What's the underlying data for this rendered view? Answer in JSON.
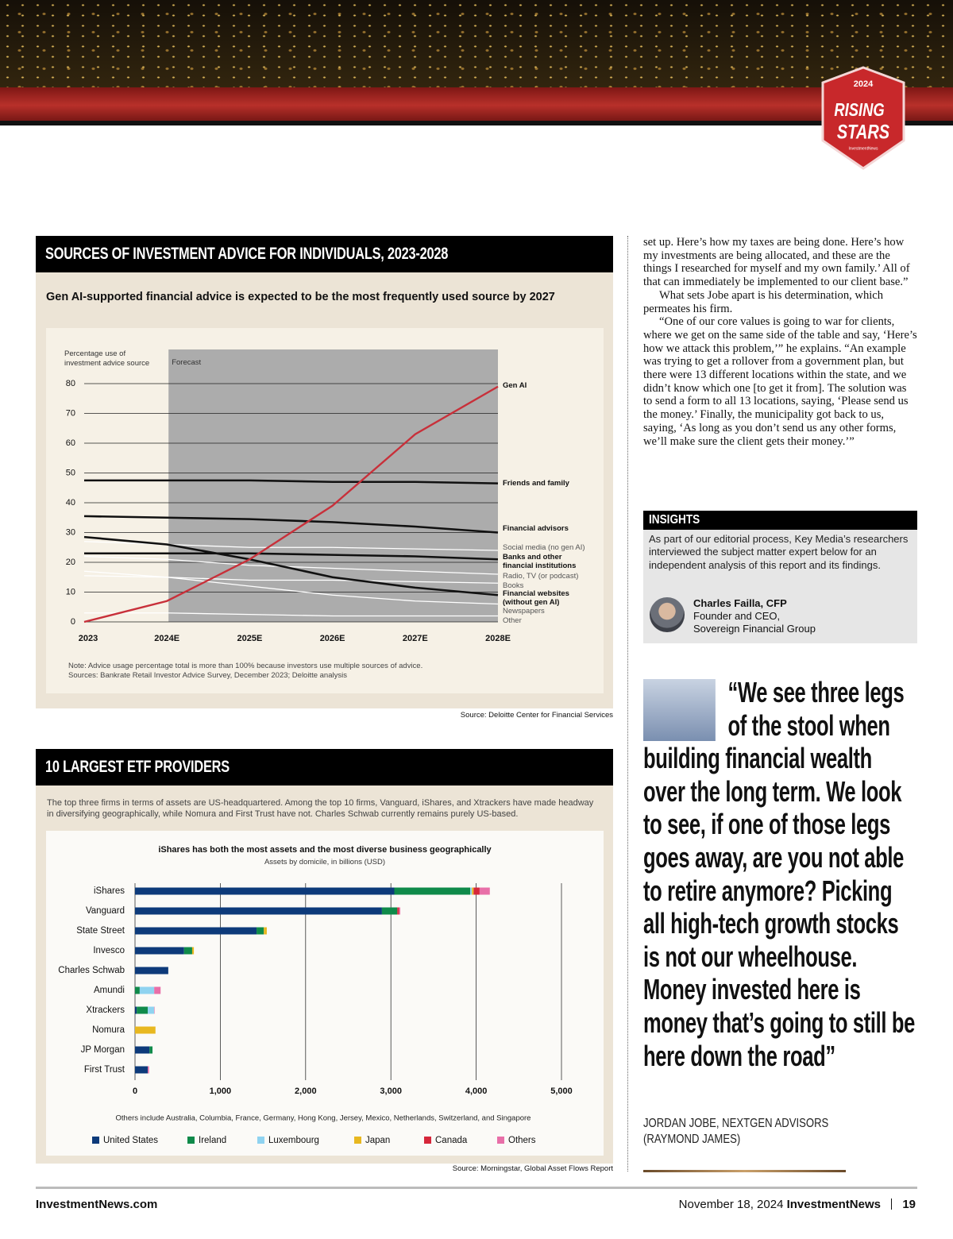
{
  "badge": {
    "year": "2024",
    "line1": "RISING",
    "line2": "STARS",
    "brand": "InvestmentNews"
  },
  "chart_data": [
    {
      "type": "line",
      "title": "SOURCES OF INVESTMENT ADVICE FOR INDIVIDUALS, 2023-2028",
      "subtitle": "Gen AI-supported financial advice is expected to be the most frequently used source by 2027",
      "y_label": "Percentage use of investment advice source",
      "forecast_label": "Forecast",
      "categories": [
        "2023",
        "2024E",
        "2025E",
        "2026E",
        "2027E",
        "2028E"
      ],
      "ylim": [
        0,
        80
      ],
      "yticks": [
        0,
        10,
        20,
        30,
        40,
        50,
        60,
        70,
        80
      ],
      "grid": true,
      "series": [
        {
          "name": "Gen AI",
          "color": "#c8303a",
          "values": [
            0,
            7,
            21,
            39,
            63,
            79
          ]
        },
        {
          "name": "Friends and family",
          "color": "#111111",
          "values": [
            47.5,
            47.5,
            47.5,
            47,
            47,
            46.5
          ]
        },
        {
          "name": "Financial advisors",
          "color": "#111111",
          "values": [
            35.5,
            35,
            34.5,
            33.5,
            32,
            30
          ]
        },
        {
          "name": "Social media (no gen AI)",
          "color": "#ffffff",
          "values": [
            27,
            26,
            25,
            25,
            24.5,
            24
          ]
        },
        {
          "name": "Banks and other financial institutions",
          "color": "#111111",
          "values": [
            23,
            23,
            23,
            22.5,
            22,
            21
          ]
        },
        {
          "name": "Radio, TV (or podcast)",
          "color": "#ffffff",
          "values": [
            22,
            21,
            19,
            18,
            17,
            16
          ]
        },
        {
          "name": "Books",
          "color": "#ffffff",
          "values": [
            15.5,
            15,
            14,
            14,
            13.5,
            13
          ]
        },
        {
          "name": "Financial websites (without gen AI)",
          "color": "#111111",
          "values": [
            28.5,
            26,
            21,
            15,
            11.5,
            9
          ]
        },
        {
          "name": "Newspapers",
          "color": "#ffffff",
          "values": [
            17,
            15,
            12,
            9,
            7,
            6
          ]
        },
        {
          "name": "Other",
          "color": "#ffffff",
          "values": [
            3,
            3,
            2.5,
            2,
            2,
            2
          ]
        }
      ],
      "note": "Note: Advice usage percentage total is more than 100% because investors use multiple sources of advice.",
      "sources": "Sources: Bankrate Retail Investor Advice Survey, December 2023; Deloitte analysis",
      "source": "Source: Deloitte Center for Financial Services"
    },
    {
      "type": "bar",
      "orientation": "horizontal",
      "stacked": true,
      "title": "10 LARGEST ETF PROVIDERS",
      "intro": "The top three firms in terms of assets are US-headquartered. Among the top 10 firms, Vanguard, iShares, and Xtrackers have made headway in diversifying geographically, while Nomura and First Trust have not. Charles Schwab currently remains purely US-based.",
      "chart_title": "iShares has both the most assets and the most diverse business geographically",
      "chart_subtitle": "Assets by domicile, in billions (USD)",
      "categories": [
        "iShares",
        "Vanguard",
        "State Street",
        "Invesco",
        "Charles Schwab",
        "Amundi",
        "Xtrackers",
        "Nomura",
        "JP Morgan",
        "First Trust"
      ],
      "xlim": [
        0,
        5000
      ],
      "xticks": [
        0,
        {
          "value": 1000,
          "label": "1,000"
        },
        {
          "value": 2000,
          "label": "2,000"
        },
        {
          "value": 3000,
          "label": "3,000"
        },
        {
          "value": 4000,
          "label": "4,000"
        },
        {
          "value": 5000,
          "label": "5,000"
        }
      ],
      "grid": true,
      "series": [
        {
          "name": "United States",
          "color": "#0d3a7a",
          "values": [
            3040,
            2895,
            1425,
            575,
            390,
            0,
            20,
            0,
            170,
            150
          ]
        },
        {
          "name": "Ireland",
          "color": "#0f8a4a",
          "values": [
            890,
            180,
            85,
            95,
            0,
            55,
            130,
            0,
            35,
            0
          ]
        },
        {
          "name": "Luxembourg",
          "color": "#8fd3f0",
          "values": [
            20,
            0,
            0,
            0,
            0,
            170,
            75,
            0,
            0,
            0
          ]
        },
        {
          "name": "Japan",
          "color": "#e8b820",
          "values": [
            20,
            0,
            35,
            20,
            0,
            0,
            0,
            240,
            0,
            0
          ]
        },
        {
          "name": "Canada",
          "color": "#d6263a",
          "values": [
            70,
            20,
            0,
            0,
            0,
            0,
            0,
            0,
            0,
            0
          ]
        },
        {
          "name": "Others",
          "color": "#e86fa8",
          "values": [
            120,
            15,
            0,
            0,
            0,
            75,
            5,
            0,
            0,
            15
          ]
        }
      ],
      "note": "Others include Australia, Columbia, France, Germany, Hong Kong, Jersey, Mexico, Netherlands, Switzerland, and Singapore",
      "source": "Source: Morningstar, Global Asset Flows Report"
    }
  ],
  "article": {
    "paragraphs": [
      "set up. Here’s how my taxes are being done. Here’s how my investments are being allocated, and these are the things I researched for myself and my own family.’ All of that can immediately be implemented to our client base.”",
      "What sets Jobe apart is his determination, which permeates his firm.",
      "“One of our core values is going to war for clients, where we get on the same side of the table and say, ‘Here’s how we attack this problem,’” he explains. “An example was trying to get a rollover from a government plan, but there were 13 different locations within the state, and we didn’t know which one [to get it from]. The solution was to send a form to all 13 locations, saying, ‘Please send us the money.’ Finally, the municipality got back to us, saying, ‘As long as you don’t send us any other forms, we’ll make sure the client gets their money.’”"
    ]
  },
  "insights": {
    "title": "INSIGHTS",
    "text": "As part of our editorial process, Key Media’s researchers interviewed the subject matter expert below for an independent analysis of this report and its findings.",
    "name": "Charles Failla, CFP",
    "role": "Founder and CEO,",
    "company": "Sovereign Financial Group"
  },
  "quote": {
    "text": "“We see three legs of the stool when building financial wealth over the long term. We look to see, if one of those legs goes away, are you not able to retire anymore? Picking all high-tech growth stocks is not our wheelhouse. Money invested here is money that’s going to still be here down the road”",
    "attribution": [
      "JORDAN JOBE, NEXTGEN ADVISORS",
      "(RAYMOND JAMES)"
    ]
  },
  "footer": {
    "site": "InvestmentNews.com",
    "date": "November 18, 2024",
    "brand": "InvestmentNews",
    "page": 19
  }
}
